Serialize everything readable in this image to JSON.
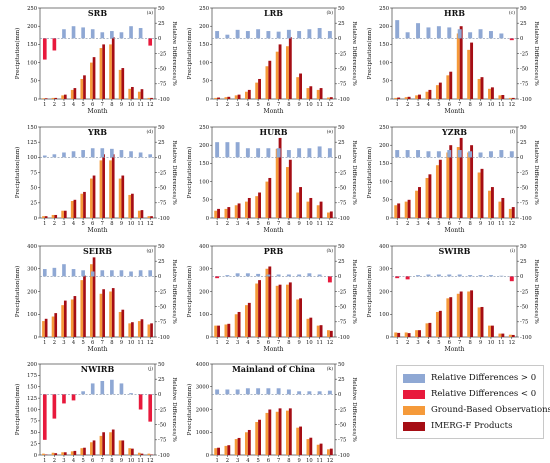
{
  "months": [
    "1",
    "2",
    "3",
    "4",
    "5",
    "6",
    "7",
    "8",
    "9",
    "10",
    "11",
    "12"
  ],
  "colors": {
    "rel_pos": "#8fa8d4",
    "rel_neg": "#e8193c",
    "ground": "#f59a3a",
    "imerg": "#a50d14",
    "dashed_zero": "#7f8fa6"
  },
  "legend": {
    "items": [
      {
        "label": "Relative Differences > 0",
        "color": "#8fa8d4"
      },
      {
        "label": "Relative Differences < 0",
        "color": "#e8193c"
      },
      {
        "label": "Ground-Based Observations",
        "color": "#f59a3a"
      },
      {
        "label": "IMERG-F Products",
        "color": "#a50d14"
      }
    ]
  },
  "chart_data": [
    {
      "type": "bar",
      "title": "SRB",
      "panel_letter": "(a)",
      "xlabel": "Month",
      "ylabel": "Precipitation(mm)",
      "y2label": "Relative Differences/%",
      "ylim": [
        0,
        250
      ],
      "yticks": [
        0,
        50,
        100,
        150,
        200,
        250
      ],
      "y2lim": [
        -100,
        50
      ],
      "y2ticks": [
        -100,
        -75,
        -50,
        -25,
        0,
        25,
        50
      ],
      "series": [
        {
          "name": "Ground-Based Observations",
          "values": [
            2,
            3,
            10,
            25,
            55,
            100,
            140,
            150,
            80,
            28,
            20,
            3
          ]
        },
        {
          "name": "IMERG-F Products",
          "values": [
            2,
            3,
            12,
            30,
            65,
            115,
            150,
            170,
            85,
            33,
            27,
            3
          ]
        },
        {
          "name": "Relative Differences",
          "values": [
            -35,
            -20,
            15,
            20,
            18,
            15,
            10,
            12,
            10,
            20,
            17,
            -12
          ]
        }
      ]
    },
    {
      "type": "bar",
      "title": "LRB",
      "panel_letter": "(b)",
      "xlabel": "Month",
      "ylabel": "Precipitation(mm)",
      "y2label": "Relative Differences/%",
      "ylim": [
        0,
        250
      ],
      "yticks": [
        0,
        50,
        100,
        150,
        200,
        250
      ],
      "y2lim": [
        -100,
        50
      ],
      "y2ticks": [
        -100,
        -75,
        -50,
        -25,
        0,
        25,
        50
      ],
      "series": [
        {
          "name": "Ground-Based Observations",
          "values": [
            3,
            5,
            10,
            20,
            45,
            90,
            130,
            145,
            60,
            30,
            25,
            4
          ]
        },
        {
          "name": "IMERG-F Products",
          "values": [
            4,
            6,
            12,
            25,
            55,
            105,
            150,
            170,
            70,
            35,
            30,
            5
          ]
        },
        {
          "name": "Relative Differences",
          "values": [
            12,
            6,
            14,
            12,
            15,
            12,
            11,
            14,
            12,
            15,
            17,
            12
          ]
        }
      ]
    },
    {
      "type": "bar",
      "title": "HRB",
      "panel_letter": "(c)",
      "xlabel": "Month",
      "ylabel": "Precipitation(mm)",
      "y2label": "Relative Differences/%",
      "ylim": [
        0,
        250
      ],
      "yticks": [
        0,
        50,
        100,
        150,
        200,
        250
      ],
      "y2lim": [
        -100,
        50
      ],
      "y2ticks": [
        -100,
        -75,
        -50,
        -25,
        0,
        25,
        50
      ],
      "series": [
        {
          "name": "Ground-Based Observations",
          "values": [
            3,
            5,
            10,
            20,
            38,
            65,
            180,
            135,
            55,
            28,
            10,
            3
          ]
        },
        {
          "name": "IMERG-F Products",
          "values": [
            4,
            6,
            12,
            25,
            45,
            75,
            200,
            155,
            60,
            32,
            11,
            3
          ]
        },
        {
          "name": "Relative Differences",
          "values": [
            30,
            10,
            25,
            18,
            20,
            18,
            15,
            10,
            15,
            12,
            8,
            -3
          ]
        }
      ]
    },
    {
      "type": "bar",
      "title": "YRB",
      "panel_letter": "(d)",
      "xlabel": "Month",
      "ylabel": "Precipitation(mm)",
      "y2label": "Relative Differences/%",
      "ylim": [
        0,
        150
      ],
      "yticks": [
        0,
        25,
        50,
        75,
        100,
        125,
        150
      ],
      "y2lim": [
        -100,
        50
      ],
      "y2ticks": [
        -100,
        -75,
        -50,
        -25,
        0,
        25,
        50
      ],
      "series": [
        {
          "name": "Ground-Based Observations",
          "values": [
            3,
            5,
            12,
            28,
            40,
            65,
            95,
            95,
            65,
            38,
            12,
            3
          ]
        },
        {
          "name": "IMERG-F Products",
          "values": [
            3,
            5,
            12,
            30,
            43,
            70,
            105,
            105,
            70,
            40,
            13,
            3
          ]
        },
        {
          "name": "Relative Differences",
          "values": [
            3,
            5,
            8,
            10,
            12,
            15,
            15,
            14,
            12,
            10,
            8,
            5
          ]
        }
      ]
    },
    {
      "type": "bar",
      "title": "HURB",
      "panel_letter": "(e)",
      "xlabel": "Month",
      "ylabel": "Precipitation(mm)",
      "y2label": "Relative Differences/%",
      "ylim": [
        0,
        250
      ],
      "yticks": [
        0,
        50,
        100,
        150,
        200,
        250
      ],
      "y2lim": [
        -100,
        50
      ],
      "y2ticks": [
        -100,
        -75,
        -50,
        -25,
        0,
        25,
        50
      ],
      "series": [
        {
          "name": "Ground-Based Observations",
          "values": [
            20,
            25,
            35,
            45,
            60,
            100,
            190,
            140,
            70,
            45,
            35,
            15
          ]
        },
        {
          "name": "IMERG-F Products",
          "values": [
            25,
            30,
            40,
            55,
            70,
            110,
            220,
            160,
            85,
            55,
            45,
            18
          ]
        },
        {
          "name": "Relative Differences",
          "values": [
            25,
            25,
            25,
            15,
            15,
            15,
            15,
            12,
            15,
            15,
            18,
            15
          ]
        }
      ]
    },
    {
      "type": "bar",
      "title": "YZRB",
      "panel_letter": "(f)",
      "xlabel": "Month",
      "ylabel": "Precipitation(mm)",
      "y2label": "Relative Differences/%",
      "ylim": [
        0,
        250
      ],
      "yticks": [
        0,
        50,
        100,
        150,
        200,
        250
      ],
      "y2lim": [
        -100,
        50
      ],
      "y2ticks": [
        -100,
        -75,
        -50,
        -25,
        0,
        25,
        50
      ],
      "series": [
        {
          "name": "Ground-Based Observations",
          "values": [
            35,
            45,
            75,
            110,
            145,
            180,
            195,
            180,
            125,
            75,
            45,
            25
          ]
        },
        {
          "name": "IMERG-F Products",
          "values": [
            40,
            50,
            85,
            120,
            160,
            200,
            220,
            200,
            135,
            85,
            55,
            30
          ]
        },
        {
          "name": "Relative Differences",
          "values": [
            12,
            12,
            12,
            10,
            10,
            12,
            12,
            10,
            8,
            10,
            12,
            10
          ]
        }
      ]
    },
    {
      "type": "bar",
      "title": "SEIRB",
      "panel_letter": "(g)",
      "xlabel": "Month",
      "ylabel": "Precipitation(mm)",
      "y2label": "Relative Differences/%",
      "ylim": [
        0,
        400
      ],
      "yticks": [
        0,
        100,
        200,
        300,
        400
      ],
      "y2lim": [
        -100,
        50
      ],
      "y2ticks": [
        -100,
        -75,
        -50,
        -25,
        0,
        25,
        50
      ],
      "series": [
        {
          "name": "Ground-Based Observations",
          "values": [
            70,
            90,
            140,
            165,
            250,
            320,
            190,
            200,
            110,
            60,
            70,
            55
          ]
        },
        {
          "name": "IMERG-F Products",
          "values": [
            80,
            105,
            160,
            180,
            270,
            350,
            210,
            215,
            120,
            65,
            78,
            60
          ]
        },
        {
          "name": "Relative Differences",
          "values": [
            12,
            14,
            20,
            12,
            10,
            8,
            10,
            10,
            10,
            8,
            10,
            10
          ]
        }
      ]
    },
    {
      "type": "bar",
      "title": "PRB",
      "panel_letter": "(h)",
      "xlabel": "Month",
      "ylabel": "Precipitation(mm)",
      "y2label": "Relative Differences/%",
      "ylim": [
        0,
        400
      ],
      "yticks": [
        0,
        100,
        200,
        300,
        400
      ],
      "y2lim": [
        -100,
        50
      ],
      "y2ticks": [
        -100,
        -75,
        -50,
        -25,
        0,
        25,
        50
      ],
      "series": [
        {
          "name": "Ground-Based Observations",
          "values": [
            50,
            55,
            100,
            140,
            235,
            300,
            225,
            230,
            165,
            80,
            50,
            30
          ]
        },
        {
          "name": "IMERG-F Products",
          "values": [
            50,
            58,
            110,
            150,
            250,
            310,
            230,
            240,
            170,
            85,
            52,
            27
          ]
        },
        {
          "name": "Relative Differences",
          "values": [
            -3,
            2,
            5,
            5,
            4,
            3,
            3,
            3,
            3,
            5,
            3,
            -10
          ]
        }
      ]
    },
    {
      "type": "bar",
      "title": "SWIRB",
      "panel_letter": "(i)",
      "xlabel": "Month",
      "ylabel": "Precipitation(mm)",
      "y2label": "Relative Differences/%",
      "ylim": [
        0,
        400
      ],
      "yticks": [
        0,
        100,
        200,
        300,
        400
      ],
      "y2lim": [
        -100,
        50
      ],
      "y2ticks": [
        -100,
        -75,
        -50,
        -25,
        0,
        25,
        50
      ],
      "series": [
        {
          "name": "Ground-Based Observations",
          "values": [
            20,
            20,
            30,
            60,
            110,
            170,
            190,
            200,
            130,
            50,
            15,
            10
          ]
        },
        {
          "name": "IMERG-F Products",
          "values": [
            18,
            17,
            30,
            62,
            115,
            175,
            200,
            205,
            132,
            50,
            15,
            9
          ]
        },
        {
          "name": "Relative Differences",
          "values": [
            -3,
            -5,
            2,
            3,
            3,
            3,
            3,
            2,
            2,
            2,
            1,
            -8
          ]
        }
      ]
    },
    {
      "type": "bar",
      "title": "NWIRB",
      "panel_letter": "(j)",
      "xlabel": "Month",
      "ylabel": "Precipitation(mm)",
      "y2label": "Relative Differences/%",
      "ylim": [
        0,
        200
      ],
      "yticks": [
        0,
        25,
        50,
        75,
        100,
        125,
        150,
        175,
        200
      ],
      "y2lim": [
        -100,
        50
      ],
      "y2ticks": [
        -100,
        -75,
        -50,
        -25,
        0,
        25,
        50
      ],
      "series": [
        {
          "name": "Ground-Based Observations",
          "values": [
            3,
            5,
            6,
            8,
            15,
            28,
            42,
            50,
            32,
            15,
            5,
            3
          ]
        },
        {
          "name": "IMERG-F Products",
          "values": [
            1,
            4,
            6,
            9,
            16,
            32,
            50,
            56,
            32,
            14,
            3,
            1
          ]
        },
        {
          "name": "Relative Differences",
          "values": [
            -75,
            -40,
            -15,
            -10,
            5,
            18,
            22,
            24,
            18,
            2,
            -25,
            -45
          ]
        }
      ]
    },
    {
      "type": "bar",
      "title": "Mainland of China",
      "panel_letter": "(k)",
      "xlabel": "Month",
      "ylabel": "Precipitation(mm)",
      "y2label": "Relative Differences/%",
      "ylim": [
        0,
        4000
      ],
      "yticks": [
        0,
        1000,
        2000,
        3000,
        4000
      ],
      "y2lim": [
        -100,
        50
      ],
      "y2ticks": [
        -100,
        -75,
        -50,
        -25,
        0,
        25,
        50
      ],
      "series": [
        {
          "name": "Ground-Based Observations",
          "values": [
            300,
            400,
            700,
            1000,
            1450,
            1850,
            1900,
            1950,
            1200,
            700,
            450,
            250
          ]
        },
        {
          "name": "IMERG-F Products",
          "values": [
            320,
            430,
            750,
            1100,
            1550,
            2000,
            2050,
            2050,
            1250,
            760,
            500,
            280
          ]
        },
        {
          "name": "Relative Differences",
          "values": [
            8,
            8,
            8,
            10,
            10,
            10,
            10,
            8,
            5,
            5,
            5,
            6
          ]
        }
      ]
    }
  ]
}
